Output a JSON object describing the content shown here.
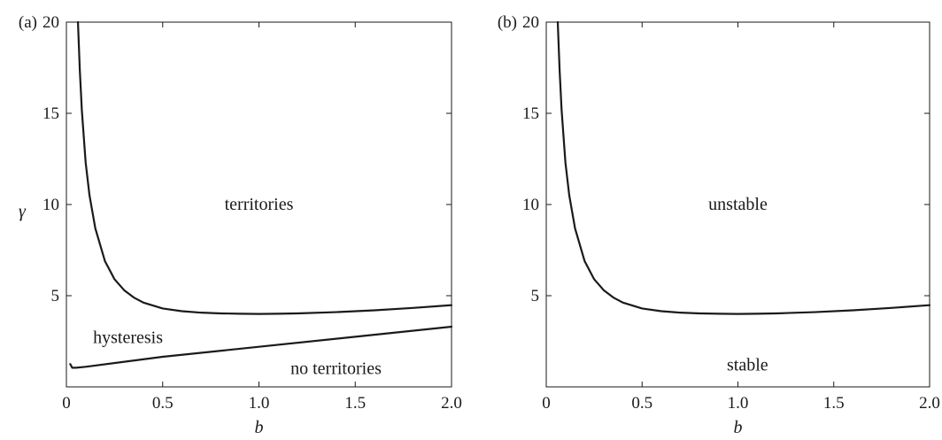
{
  "chart_data": [
    {
      "type": "line",
      "panel_tag": "(a)",
      "xlabel": "b",
      "ylabel": "γ",
      "xlim": [
        0,
        2.0
      ],
      "ylim": [
        0,
        20
      ],
      "xticks": [
        "0",
        "0.5",
        "1.0",
        "1.5",
        "2.0"
      ],
      "xtick_values": [
        0,
        0.5,
        1.0,
        1.5,
        2.0
      ],
      "yticks": [
        "5",
        "10",
        "15",
        "20"
      ],
      "ytick_values": [
        5,
        10,
        15,
        20
      ],
      "grid": false,
      "series": [
        {
          "x": [
            0.06,
            0.07,
            0.08,
            0.1,
            0.12,
            0.15,
            0.2,
            0.25,
            0.3,
            0.35,
            0.4,
            0.5,
            0.6,
            0.7,
            0.8,
            0.9,
            1.0,
            1.1,
            1.2,
            1.4,
            1.6,
            1.8,
            2.0
          ],
          "y": [
            20.0,
            17.3,
            15.2,
            12.3,
            10.5,
            8.7,
            6.9,
            5.9,
            5.3,
            4.9,
            4.62,
            4.3,
            4.15,
            4.07,
            4.03,
            4.01,
            4.0,
            4.01,
            4.03,
            4.1,
            4.2,
            4.33,
            4.48
          ]
        },
        {
          "x": [
            0.02,
            0.03,
            0.05,
            0.1,
            0.5,
            1.0,
            1.5,
            2.0
          ],
          "y": [
            1.25,
            1.05,
            1.05,
            1.1,
            1.65,
            2.2,
            2.75,
            3.3
          ]
        }
      ],
      "annotations": [
        {
          "text": "territories",
          "x": 1.0,
          "y": 10.0
        },
        {
          "text": "hysteresis",
          "x": 0.32,
          "y": 2.7
        },
        {
          "text": "no territories",
          "x": 1.4,
          "y": 1.0
        }
      ]
    },
    {
      "type": "line",
      "panel_tag": "(b)",
      "xlabel": "b",
      "ylabel": "",
      "xlim": [
        0,
        2.0
      ],
      "ylim": [
        0,
        20
      ],
      "xticks": [
        "0",
        "0.5",
        "1.0",
        "1.5",
        "2.0"
      ],
      "xtick_values": [
        0,
        0.5,
        1.0,
        1.5,
        2.0
      ],
      "yticks": [
        "5",
        "10",
        "15",
        "20"
      ],
      "ytick_values": [
        5,
        10,
        15,
        20
      ],
      "grid": false,
      "series": [
        {
          "x": [
            0.06,
            0.07,
            0.08,
            0.1,
            0.12,
            0.15,
            0.2,
            0.25,
            0.3,
            0.35,
            0.4,
            0.5,
            0.6,
            0.7,
            0.8,
            0.9,
            1.0,
            1.1,
            1.2,
            1.4,
            1.6,
            1.8,
            2.0
          ],
          "y": [
            20.0,
            17.3,
            15.2,
            12.3,
            10.5,
            8.7,
            6.9,
            5.9,
            5.3,
            4.9,
            4.62,
            4.3,
            4.15,
            4.07,
            4.03,
            4.01,
            4.0,
            4.01,
            4.03,
            4.1,
            4.2,
            4.33,
            4.48
          ]
        }
      ],
      "annotations": [
        {
          "text": "unstable",
          "x": 1.0,
          "y": 10.0
        },
        {
          "text": "stable",
          "x": 1.05,
          "y": 1.2
        }
      ]
    }
  ]
}
